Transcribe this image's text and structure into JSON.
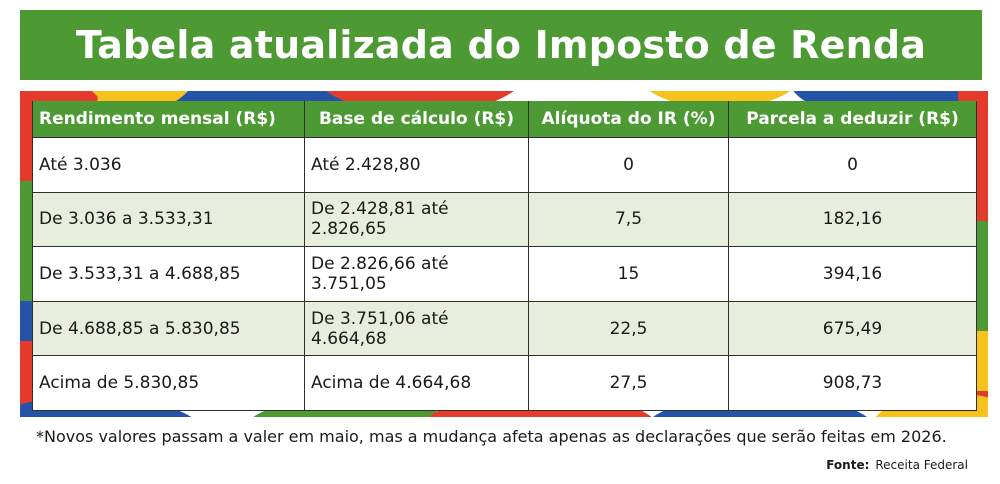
{
  "title": "Tabela atualizada do Imposto de Renda",
  "colors": {
    "green": "#4d9a35",
    "light_row": "#e7eedd",
    "red": "#e53b2c",
    "blue": "#2553a8",
    "yellow": "#f6c21b"
  },
  "table": {
    "headers": [
      "Rendimento mensal (R$)",
      "Base de cálculo (R$)",
      "Alíquota do IR (%)",
      "Parcela a deduzir (R$)"
    ],
    "rows": [
      [
        "Até 3.036",
        "Até 2.428,80",
        "0",
        "0"
      ],
      [
        "De 3.036 a 3.533,31",
        "De 2.428,81 até 2.826,65",
        "7,5",
        "182,16"
      ],
      [
        "De 3.533,31 a 4.688,85",
        "De 2.826,66 até 3.751,05",
        "15",
        "394,16"
      ],
      [
        "De 4.688,85 a 5.830,85",
        "De 3.751,06 até 4.664,68",
        "22,5",
        "675,49"
      ],
      [
        "Acima de 5.830,85",
        "Acima de 4.664,68",
        "27,5",
        "908,73"
      ]
    ]
  },
  "footnote": "*Novos valores passam a valer em maio, mas a mudança afeta apenas as declarações que serão feitas em 2026.",
  "source": {
    "label": "Fonte:",
    "value": "Receita Federal"
  }
}
